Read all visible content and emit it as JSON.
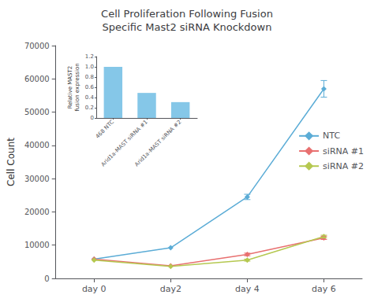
{
  "chart_data": [
    {
      "type": "line",
      "title": "Cell Proliferation Following Fusion\nSpecific Mast2 siRNA Knockdown",
      "ylabel": "Cell Count",
      "categories": [
        "day 0",
        "day2",
        "day 4",
        "day 6"
      ],
      "series": [
        {
          "name": "NTC",
          "color": "#5BACD6",
          "marker": "diamond",
          "values": [
            5800,
            9200,
            24500,
            57000
          ],
          "yerr": [
            0,
            0,
            800,
            2500
          ]
        },
        {
          "name": "siRNA #1",
          "color": "#E87070",
          "marker": "diamond",
          "values": [
            5800,
            3800,
            7200,
            12200
          ],
          "yerr": [
            0,
            0,
            400,
            500
          ]
        },
        {
          "name": "siRNA #2",
          "color": "#B5C850",
          "marker": "diamond",
          "values": [
            5500,
            3600,
            5500,
            12600
          ],
          "yerr": [
            0,
            0,
            300,
            400
          ]
        }
      ],
      "ylim": [
        0,
        70000
      ],
      "yticks": [
        0,
        10000,
        20000,
        30000,
        40000,
        50000,
        60000,
        70000
      ],
      "grid": false,
      "legend": "right"
    },
    {
      "type": "bar",
      "ylabel": "Relative MAST2\nfusion expression",
      "categories": [
        "468 NTC",
        "Arid1a-MAST siRNA #1",
        "Arid1a-MAST siRNA #2"
      ],
      "values": [
        1.0,
        0.49,
        0.31
      ],
      "color": "#85C7E8",
      "ylim": [
        0,
        1.2
      ],
      "yticks": [
        0,
        0.2,
        0.4,
        0.6,
        0.8,
        {
          "value": 1.0,
          "label": "1.0"
        },
        1.2
      ],
      "grid": false
    }
  ]
}
